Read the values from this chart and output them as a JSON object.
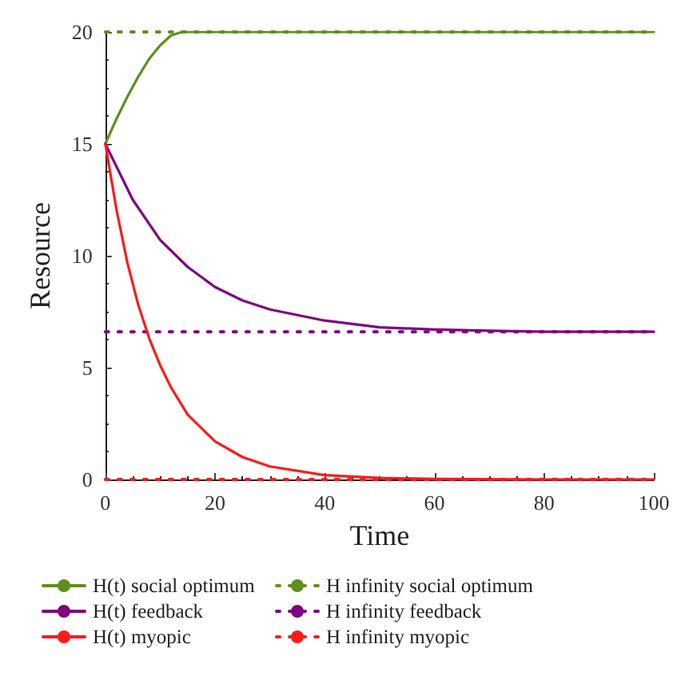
{
  "chart_data": {
    "type": "line",
    "xlabel": "Time",
    "ylabel": "Resource",
    "xlim": [
      0,
      100
    ],
    "xticks": [
      0,
      20,
      40,
      60,
      80,
      100
    ],
    "ylim": [
      0,
      20
    ],
    "yticks": [
      0,
      5,
      10,
      15,
      20
    ],
    "grid": false,
    "legend": "bottom",
    "marker": "none",
    "series": [
      {
        "name": "H(t) social optimum",
        "color": "#5f8f1e",
        "line_style": "solid",
        "x": [
          0,
          2,
          4,
          6,
          8,
          10,
          12,
          14,
          20,
          40,
          60,
          80,
          100
        ],
        "values": [
          15,
          16.1,
          17.1,
          18.0,
          18.8,
          19.4,
          19.85,
          20,
          20,
          20,
          20,
          20,
          20
        ]
      },
      {
        "name": "H infinity social optimum",
        "color": "#5f8f1e",
        "line_style": "dotted",
        "x": [
          0,
          100
        ],
        "values": [
          20,
          20
        ]
      },
      {
        "name": "H(t) feedback",
        "color": "#800080",
        "line_style": "solid",
        "x": [
          0,
          5,
          10,
          15,
          20,
          25,
          30,
          40,
          50,
          60,
          70,
          80,
          100
        ],
        "values": [
          15,
          12.5,
          10.7,
          9.5,
          8.6,
          8.0,
          7.6,
          7.1,
          6.8,
          6.7,
          6.65,
          6.6,
          6.6
        ]
      },
      {
        "name": "H infinity feedback",
        "color": "#800080",
        "line_style": "dotted",
        "x": [
          0,
          100
        ],
        "values": [
          6.6,
          6.6
        ]
      },
      {
        "name": "H(t) myopic",
        "color": "#ff1a1a",
        "line_style": "solid",
        "x": [
          0,
          2,
          4,
          6,
          8,
          10,
          12,
          15,
          20,
          25,
          30,
          40,
          50,
          60,
          80,
          100
        ],
        "values": [
          15,
          12.1,
          9.7,
          7.8,
          6.3,
          5.1,
          4.1,
          2.9,
          1.7,
          1.0,
          0.58,
          0.19,
          0.07,
          0.02,
          0,
          0
        ]
      },
      {
        "name": "H infinity myopic",
        "color": "#ff1a1a",
        "line_style": "dotted",
        "x": [
          0,
          100
        ],
        "values": [
          0,
          0
        ]
      }
    ]
  }
}
